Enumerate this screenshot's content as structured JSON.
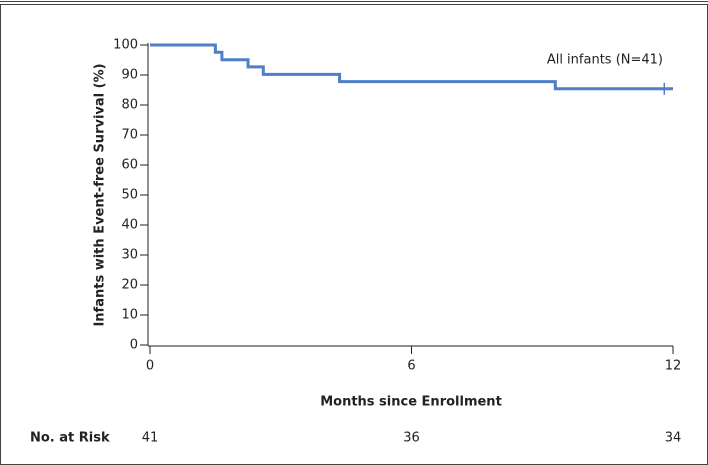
{
  "chart_data": {
    "type": "step",
    "y_label": "Infants with Event-free Survival (%)",
    "x_label": "Months since Enrollment",
    "x": [
      0,
      1.5,
      1.65,
      2.25,
      2.6,
      4.35,
      9.3,
      12
    ],
    "series": [
      {
        "name": "All infants (N=41)",
        "color": "#4f7fc6",
        "values": [
          100,
          97.6,
          95.1,
          92.7,
          90.2,
          87.8,
          85.4,
          85.4
        ]
      }
    ],
    "censor_x": [
      11.8
    ],
    "xlim": [
      0,
      12
    ],
    "xticks": [
      0,
      6,
      12
    ],
    "ylim": [
      0,
      100
    ],
    "yticks": [
      0,
      10,
      20,
      30,
      40,
      50,
      60,
      70,
      80,
      90,
      100
    ],
    "risk_table": {
      "label": "No. at Risk",
      "values": [
        41,
        36,
        34
      ]
    }
  }
}
